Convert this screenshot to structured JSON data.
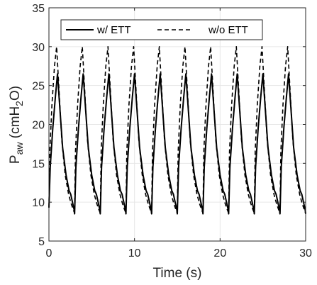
{
  "chart_data": {
    "type": "line",
    "title": "",
    "xlabel": "Time (s)",
    "ylabel": {
      "main": "P",
      "sub": "aw",
      "unit_pre": " (cmH",
      "unit_sub": "2",
      "unit_post": "O)"
    },
    "xlim": [
      0,
      30
    ],
    "ylim": [
      5,
      35
    ],
    "xticks": [
      "0",
      "10",
      "20",
      "30"
    ],
    "yticks": [
      "5",
      "10",
      "15",
      "20",
      "25",
      "30",
      "35"
    ],
    "grid": true,
    "legend_position": "top",
    "series": [
      {
        "name": "w/ ETT",
        "line_style": "solid",
        "color": "#000000",
        "x": [
          0,
          0.15,
          0.45,
          0.75,
          1.0,
          1.25,
          1.6,
          2.0,
          2.35,
          2.55,
          2.75,
          2.95,
          3.0,
          3.15,
          3.45,
          3.75,
          4.0,
          4.25,
          4.6,
          5.0,
          5.35,
          5.55,
          5.75,
          5.95,
          6.0,
          6.15,
          6.45,
          6.75,
          7.0,
          7.25,
          7.6,
          8.0,
          8.35,
          8.55,
          8.75,
          8.95,
          9.0,
          9.15,
          9.45,
          9.75,
          10.0,
          10.25,
          10.6,
          11.0,
          11.35,
          11.55,
          11.75,
          11.95,
          12.0,
          12.15,
          12.45,
          12.75,
          13.0,
          13.25,
          13.6,
          14.0,
          14.35,
          14.55,
          14.75,
          14.95,
          15.0,
          15.15,
          15.45,
          15.75,
          16.0,
          16.25,
          16.6,
          17.0,
          17.35,
          17.55,
          17.75,
          17.95,
          18.0,
          18.15,
          18.45,
          18.75,
          19.0,
          19.25,
          19.6,
          20.0,
          20.35,
          20.55,
          20.75,
          20.95,
          21.0,
          21.15,
          21.45,
          21.75,
          22.0,
          22.25,
          22.6,
          23.0,
          23.35,
          23.55,
          23.75,
          23.95,
          24.0,
          24.15,
          24.45,
          24.75,
          25.0,
          25.25,
          25.6,
          26.0,
          26.35,
          26.55,
          26.75,
          26.95,
          27.0,
          27.15,
          27.45,
          27.75,
          28.0,
          28.25,
          28.6,
          29.0,
          29.35,
          29.55,
          29.75,
          29.95,
          30.0
        ],
        "y": [
          9.3,
          14.5,
          19.5,
          23.5,
          26.5,
          22.5,
          17.0,
          13.5,
          11.5,
          11.0,
          10.0,
          9.0,
          8.5,
          14.5,
          19.5,
          23.5,
          26.5,
          22.5,
          17.0,
          13.5,
          11.5,
          11.0,
          10.0,
          9.0,
          8.5,
          14.5,
          19.5,
          23.5,
          26.5,
          22.5,
          17.0,
          13.5,
          11.5,
          11.0,
          10.0,
          9.0,
          8.5,
          14.5,
          19.5,
          23.5,
          26.5,
          22.5,
          17.0,
          13.5,
          11.5,
          11.0,
          10.0,
          9.0,
          8.5,
          14.5,
          19.5,
          23.5,
          26.5,
          22.5,
          17.0,
          13.5,
          11.5,
          11.0,
          10.0,
          9.0,
          8.5,
          14.5,
          19.5,
          23.5,
          26.5,
          22.5,
          17.0,
          13.5,
          11.5,
          11.0,
          10.0,
          9.0,
          8.5,
          14.5,
          19.5,
          23.5,
          26.5,
          22.5,
          17.0,
          13.5,
          11.5,
          11.0,
          10.0,
          9.0,
          8.5,
          14.5,
          19.5,
          23.5,
          26.5,
          22.5,
          17.0,
          13.5,
          11.5,
          11.0,
          10.0,
          9.0,
          8.5,
          14.5,
          19.5,
          23.5,
          26.5,
          22.5,
          17.0,
          13.5,
          11.5,
          11.0,
          10.0,
          9.0,
          8.5,
          14.5,
          19.5,
          23.5,
          26.5,
          22.5,
          17.0,
          13.5,
          11.5,
          11.0,
          10.0,
          9.0,
          8.5
        ]
      },
      {
        "name": "w/o ETT",
        "line_style": "dashed",
        "color": "#000000",
        "x": [
          0,
          0.1,
          0.35,
          0.65,
          0.9,
          1.2,
          1.5,
          1.9,
          2.3,
          2.6,
          2.85,
          3.0,
          3.1,
          3.35,
          3.65,
          3.9,
          4.2,
          4.5,
          4.9,
          5.3,
          5.6,
          5.85,
          6.0,
          6.1,
          6.35,
          6.65,
          6.9,
          7.2,
          7.5,
          7.9,
          8.3,
          8.6,
          8.85,
          9.0,
          9.1,
          9.35,
          9.65,
          9.9,
          10.2,
          10.5,
          10.9,
          11.3,
          11.6,
          11.85,
          12.0,
          12.1,
          12.35,
          12.65,
          12.9,
          13.2,
          13.5,
          13.9,
          14.3,
          14.6,
          14.85,
          15.0,
          15.1,
          15.35,
          15.65,
          15.9,
          16.2,
          16.5,
          16.9,
          17.3,
          17.6,
          17.85,
          18.0,
          18.1,
          18.35,
          18.65,
          18.9,
          19.2,
          19.5,
          19.9,
          20.3,
          20.6,
          20.85,
          21.0,
          21.1,
          21.35,
          21.65,
          21.9,
          22.2,
          22.5,
          22.9,
          23.3,
          23.6,
          23.85,
          24.0,
          24.1,
          24.35,
          24.65,
          24.9,
          25.2,
          25.5,
          25.9,
          26.3,
          26.6,
          26.85,
          27.0,
          27.1,
          27.35,
          27.65,
          27.9,
          28.2,
          28.5,
          28.9,
          29.3,
          29.6,
          29.85,
          30.0
        ],
        "y": [
          9.3,
          16.5,
          22.5,
          27.5,
          30.0,
          24.0,
          18.0,
          13.5,
          11.0,
          9.8,
          9.0,
          8.6,
          16.5,
          22.5,
          27.5,
          30.0,
          24.0,
          18.0,
          13.5,
          11.0,
          9.8,
          9.0,
          8.6,
          16.5,
          22.5,
          27.5,
          30.0,
          24.0,
          18.0,
          13.5,
          11.0,
          9.8,
          9.0,
          8.6,
          16.5,
          22.5,
          27.5,
          30.0,
          24.0,
          18.0,
          13.5,
          11.0,
          9.8,
          9.0,
          8.6,
          16.5,
          22.5,
          27.5,
          30.0,
          24.0,
          18.0,
          13.5,
          11.0,
          9.8,
          9.0,
          8.6,
          16.5,
          22.5,
          27.5,
          30.0,
          24.0,
          18.0,
          13.5,
          11.0,
          9.8,
          9.0,
          8.6,
          16.5,
          22.5,
          27.5,
          30.0,
          24.0,
          18.0,
          13.5,
          11.0,
          9.8,
          9.0,
          8.6,
          16.5,
          22.5,
          27.5,
          30.0,
          24.0,
          18.0,
          13.5,
          11.0,
          9.8,
          9.0,
          8.6,
          16.5,
          22.5,
          27.5,
          30.0,
          24.0,
          18.0,
          13.5,
          11.0,
          9.8,
          9.0,
          8.6,
          16.5,
          22.5,
          27.5,
          30.0,
          24.0,
          18.0,
          13.5,
          11.0,
          9.8,
          9.0,
          8.6
        ]
      }
    ]
  }
}
